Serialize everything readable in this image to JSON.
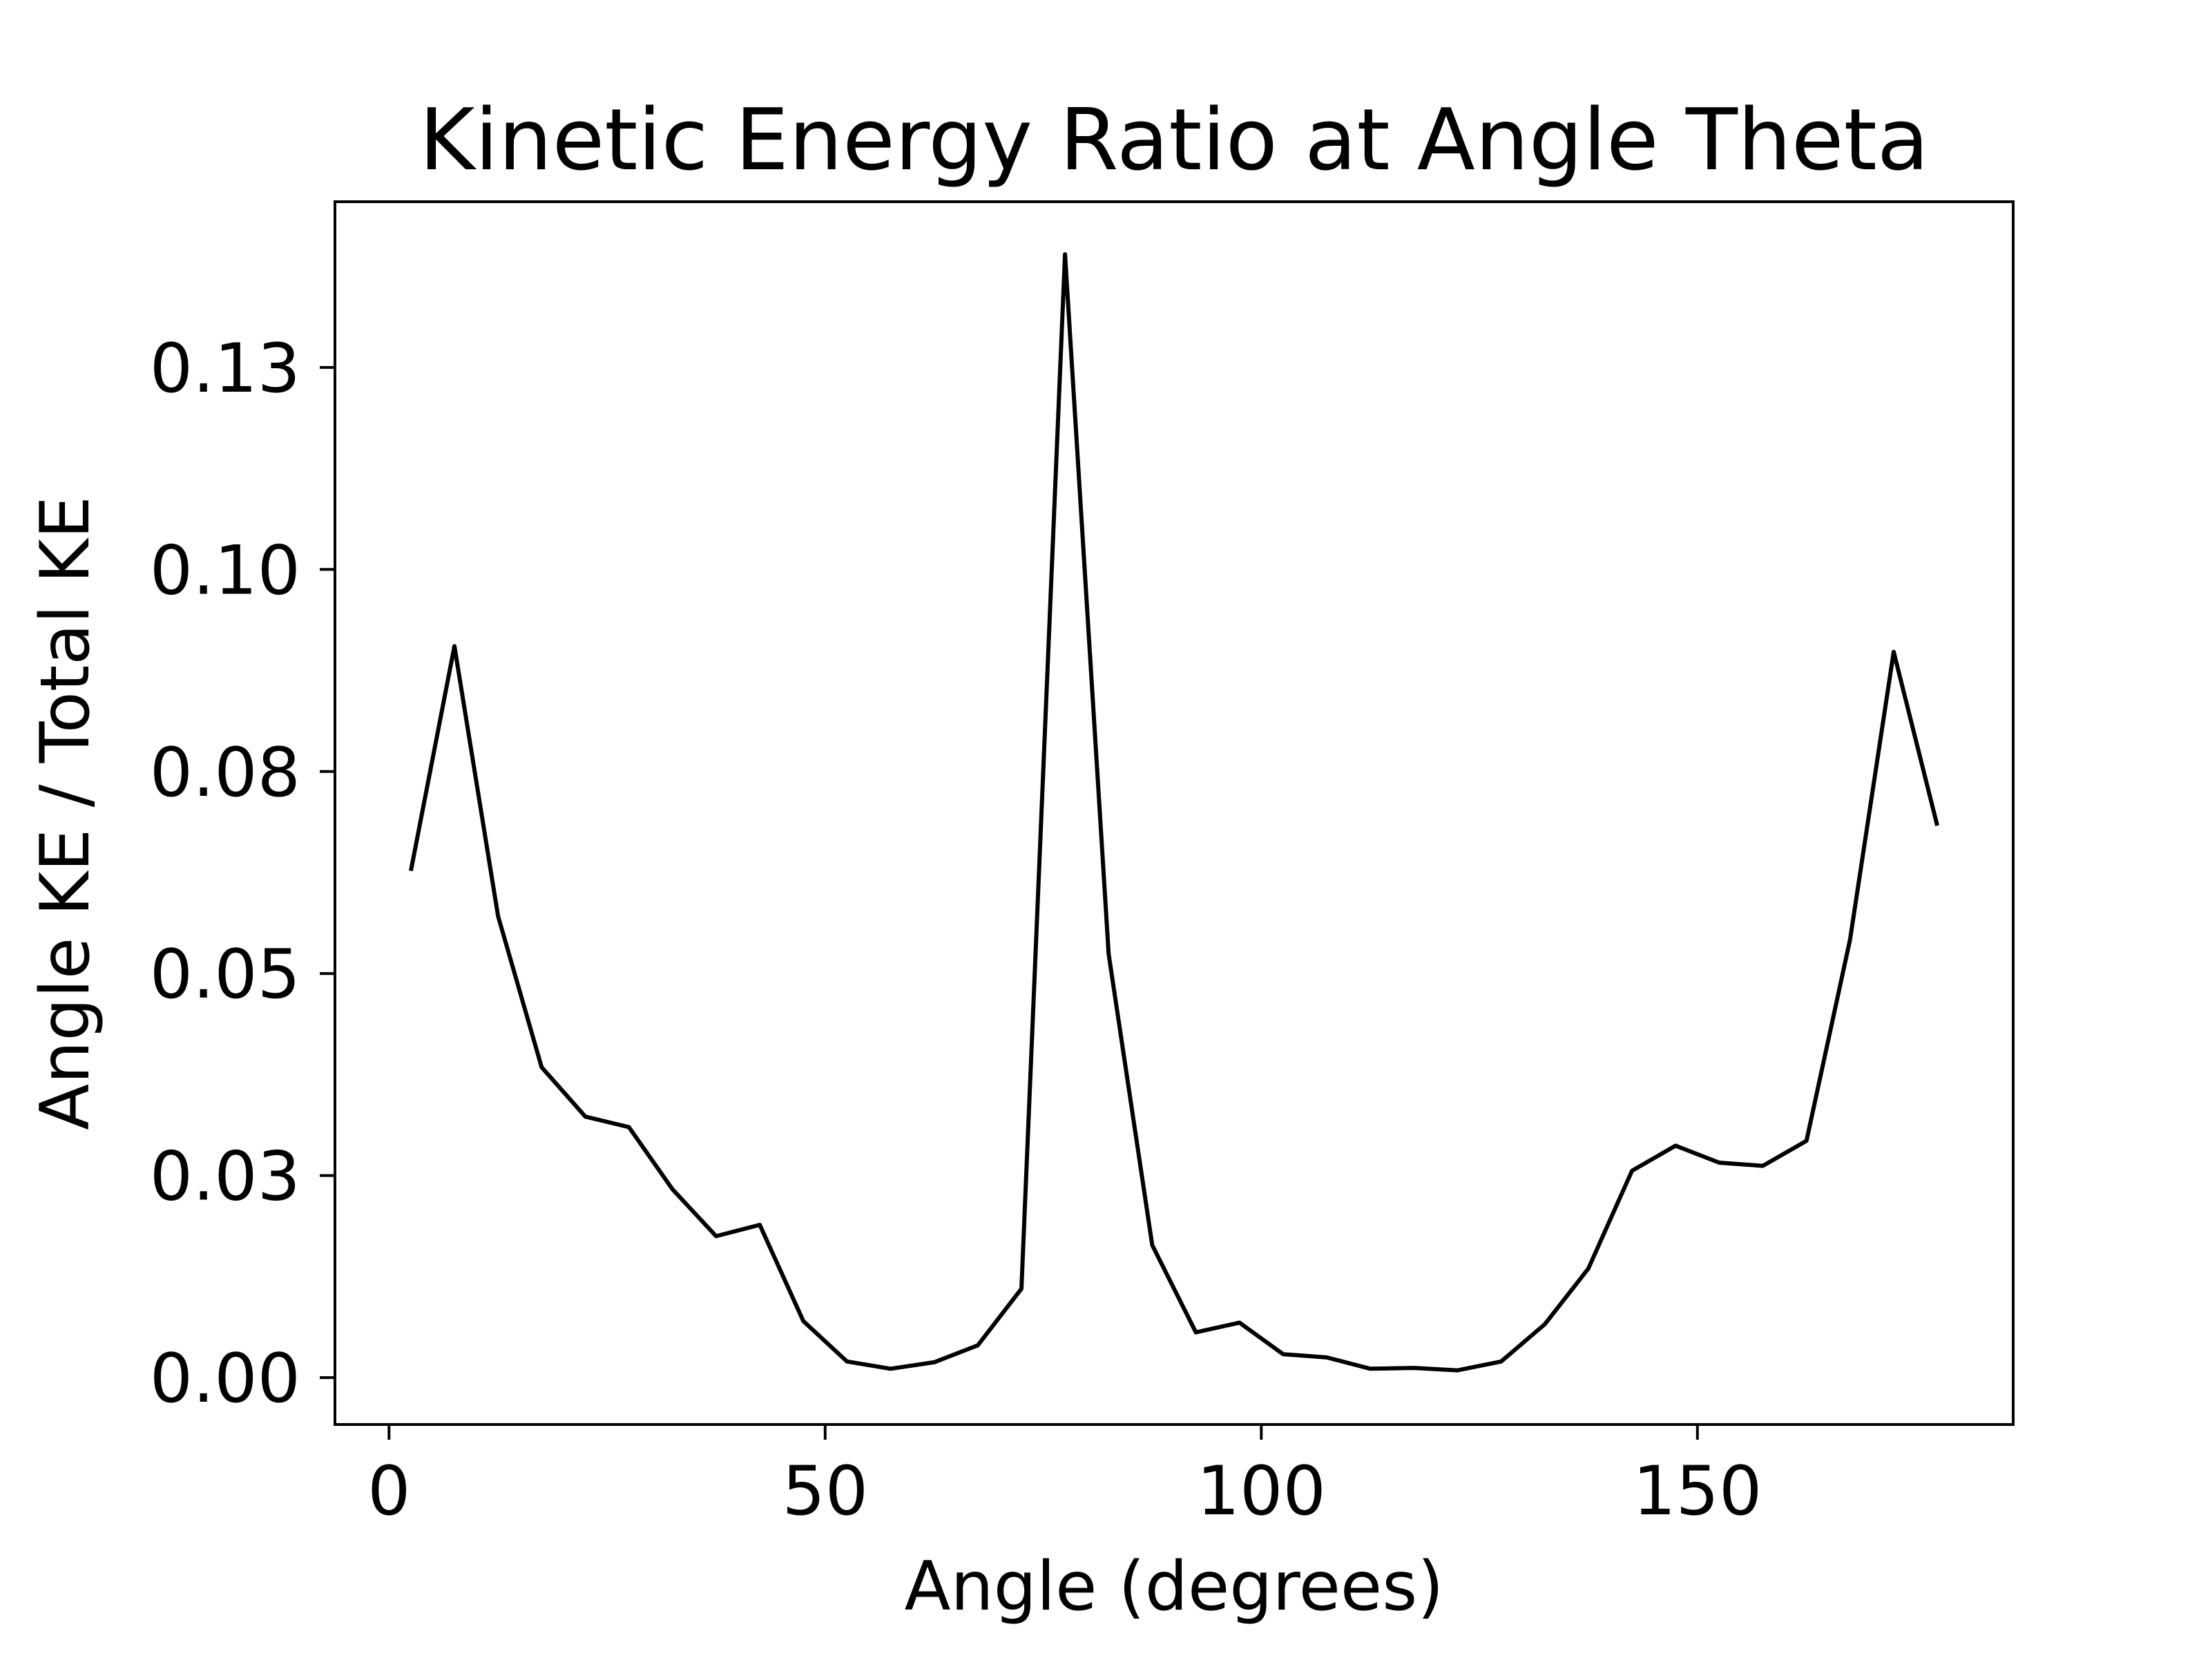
{
  "chart_data": {
    "type": "line",
    "title": "Kinetic Energy Ratio at Angle Theta",
    "xlabel": "Angle (degrees)",
    "ylabel": "Angle KE / Total KE",
    "xlim": [
      -6.2,
      186.2
    ],
    "ylim": [
      -0.0058,
      0.1455
    ],
    "x_ticks": [
      0,
      50,
      100,
      150
    ],
    "x_tick_labels": [
      "0",
      "50",
      "100",
      "150"
    ],
    "y_ticks": [
      0.0,
      0.025,
      0.05,
      0.075,
      0.1,
      0.125
    ],
    "y_tick_labels": [
      "0.00",
      "0.03",
      "0.05",
      "0.08",
      "0.10",
      "0.13"
    ],
    "grid": false,
    "legend": "none",
    "line_color": "#000000",
    "series": [
      {
        "x": [
          2.5,
          7.5,
          12.5,
          17.5,
          22.5,
          27.5,
          32.5,
          37.5,
          42.5,
          47.5,
          52.5,
          57.5,
          62.5,
          67.5,
          72.5,
          77.5,
          82.5,
          87.5,
          92.5,
          97.5,
          102.5,
          107.5,
          112.5,
          117.5,
          122.5,
          127.5,
          132.5,
          137.5,
          142.5,
          147.5,
          152.5,
          157.5,
          162.5,
          167.5,
          172.5,
          177.5
        ],
        "values": [
          0.0627,
          0.0905,
          0.0571,
          0.0384,
          0.0323,
          0.031,
          0.0233,
          0.0175,
          0.0189,
          0.007,
          0.002,
          0.0011,
          0.0019,
          0.004,
          0.011,
          0.139,
          0.0524,
          0.0164,
          0.0056,
          0.0068,
          0.0029,
          0.0025,
          0.0011,
          0.0012,
          0.0009,
          0.002,
          0.0066,
          0.0135,
          0.0256,
          0.0287,
          0.0266,
          0.0262,
          0.0293,
          0.0542,
          0.0898,
          0.0683
        ]
      }
    ]
  }
}
